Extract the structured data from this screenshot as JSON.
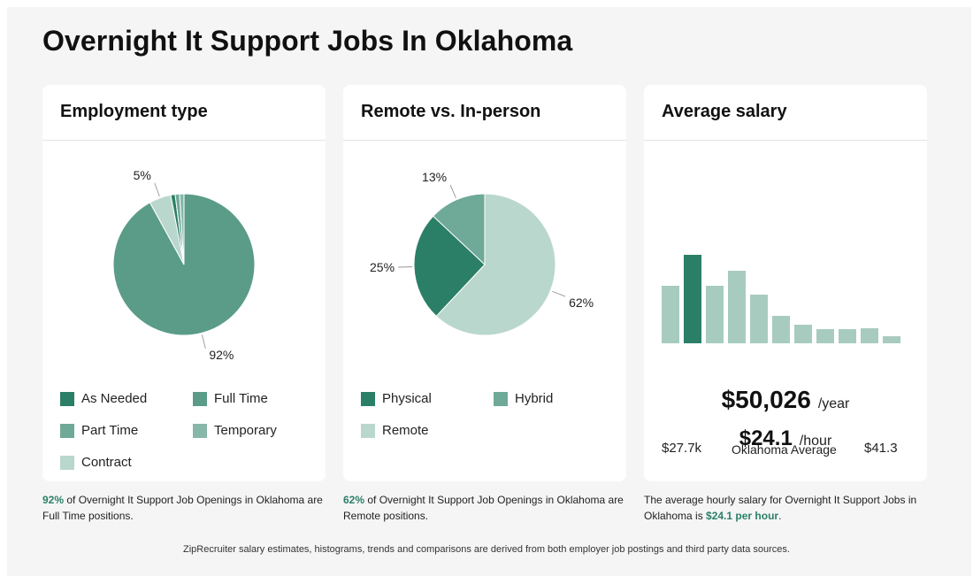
{
  "page": {
    "title": "Overnight It Support Jobs In Oklahoma"
  },
  "colors": {
    "dark_green": "#2b7f67",
    "mid_green": "#5a9c87",
    "light_green": "#b9d7cd",
    "highlight_text": "#2b7f67"
  },
  "employment": {
    "title": "Employment type",
    "legend": [
      {
        "label": "As Needed",
        "color": "#2b7f67"
      },
      {
        "label": "Full Time",
        "color": "#5a9c87"
      },
      {
        "label": "Part Time",
        "color": "#6fa998"
      },
      {
        "label": "Temporary",
        "color": "#86b7a8"
      },
      {
        "label": "Contract",
        "color": "#b9d7cd"
      }
    ],
    "caption": {
      "pct": "92%",
      "text": " of Overnight It Support Job Openings in Oklahoma are Full Time positions."
    }
  },
  "remote": {
    "title": "Remote vs. In-person",
    "legend": [
      {
        "label": "Physical",
        "color": "#2b7f67"
      },
      {
        "label": "Hybrid",
        "color": "#6fa998"
      },
      {
        "label": "Remote",
        "color": "#b9d7cd"
      }
    ],
    "caption": {
      "pct": "62%",
      "text": " of Overnight It Support Job Openings in Oklahoma are Remote positions."
    }
  },
  "salary": {
    "title": "Average salary",
    "min_label": "$27.7k",
    "mid_label": "Oklahoma Average",
    "max_label": "$41.3",
    "yearly_value": "$50,026",
    "yearly_unit": "/year",
    "hourly_value": "$24.1",
    "hourly_unit": "/hour",
    "caption": {
      "text": "The average hourly salary for Overnight It Support Jobs in Oklahoma is ",
      "highlight": "$24.1 per hour",
      "end": "."
    }
  },
  "footer": "ZipRecruiter salary estimates, histograms, trends and comparisons are derived from both employer job postings and third party data sources.",
  "chart_data": [
    {
      "type": "pie",
      "categories": [
        "Full Time",
        "Contract",
        "As Needed",
        "Part Time",
        "Temporary"
      ],
      "values": [
        92,
        5,
        1,
        1,
        1
      ],
      "colors": [
        "#5a9c87",
        "#b9d7cd",
        "#2b7f67",
        "#6fa998",
        "#86b7a8"
      ],
      "labels": [
        "92%",
        "5%",
        "",
        "",
        ""
      ],
      "legend_position": "bottom"
    },
    {
      "type": "pie",
      "categories": [
        "Remote",
        "Physical",
        "Hybrid"
      ],
      "values": [
        62,
        25,
        13
      ],
      "colors": [
        "#b9d7cd",
        "#2b7f67",
        "#6fa998"
      ],
      "labels": [
        "62%",
        "25%",
        "13%"
      ],
      "legend_position": "bottom"
    },
    {
      "type": "bar",
      "values": [
        65,
        100,
        65,
        82,
        55,
        31,
        21,
        16,
        16,
        17,
        8
      ],
      "highlight_index": 1,
      "colors": {
        "bar": "#a8cbc0",
        "highlight": "#2b7f67"
      }
    }
  ]
}
